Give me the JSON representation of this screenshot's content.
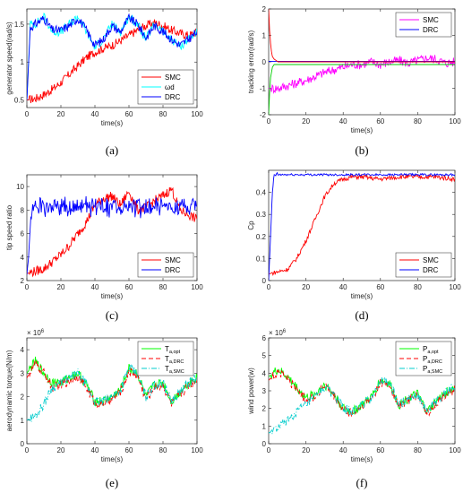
{
  "chart_data": [
    {
      "id": "a",
      "caption": "(a)",
      "type": "line",
      "xlabel": "time(s)",
      "ylabel": "generator speed(rad/s)",
      "xlim": [
        0,
        100
      ],
      "ylim": [
        0.4,
        1.7
      ],
      "xticks": [
        0,
        20,
        40,
        60,
        80,
        100
      ],
      "yticks": [
        0.5,
        1,
        1.5
      ],
      "legend_position": "bottom-right",
      "series": [
        {
          "name": "SMC",
          "color": "#ff0000",
          "style": "solid",
          "x": [
            0,
            5,
            10,
            15,
            20,
            25,
            30,
            35,
            40,
            45,
            50,
            55,
            60,
            65,
            70,
            75,
            80,
            85,
            90,
            95,
            100
          ],
          "y": [
            0.5,
            0.52,
            0.57,
            0.64,
            0.73,
            0.84,
            0.95,
            1.06,
            1.13,
            1.18,
            1.22,
            1.28,
            1.35,
            1.42,
            1.48,
            1.52,
            1.48,
            1.42,
            1.38,
            1.35,
            1.4
          ]
        },
        {
          "name": "ωd",
          "color": "#00ffff",
          "style": "solid",
          "x": [
            0,
            2,
            5,
            10,
            15,
            20,
            25,
            30,
            35,
            40,
            45,
            50,
            55,
            60,
            65,
            70,
            75,
            80,
            85,
            90,
            95,
            100
          ],
          "y": [
            0.5,
            1.5,
            1.5,
            1.6,
            1.4,
            1.4,
            1.5,
            1.6,
            1.4,
            1.2,
            1.3,
            1.5,
            1.4,
            1.6,
            1.5,
            1.3,
            1.5,
            1.4,
            1.3,
            1.2,
            1.3,
            1.4
          ]
        },
        {
          "name": "DRC",
          "color": "#0000ff",
          "style": "solid",
          "x": [
            0,
            2,
            5,
            10,
            15,
            20,
            25,
            30,
            35,
            40,
            45,
            50,
            55,
            60,
            65,
            70,
            75,
            80,
            85,
            90,
            95,
            100
          ],
          "y": [
            0.5,
            1.45,
            1.5,
            1.58,
            1.42,
            1.42,
            1.48,
            1.58,
            1.42,
            1.22,
            1.3,
            1.48,
            1.4,
            1.58,
            1.5,
            1.32,
            1.48,
            1.4,
            1.3,
            1.22,
            1.3,
            1.4
          ]
        }
      ]
    },
    {
      "id": "b",
      "caption": "(b)",
      "type": "line",
      "xlabel": "time(s)",
      "ylabel": "tracking error(rad/s)",
      "xlim": [
        0,
        100
      ],
      "ylim": [
        -2,
        2
      ],
      "xticks": [
        0,
        20,
        40,
        60,
        80,
        100
      ],
      "yticks": [
        -2,
        -1,
        0,
        1,
        2
      ],
      "legend_position": "top-right",
      "series": [
        {
          "name": "SMC",
          "color": "#ff00ff",
          "style": "solid",
          "x": [
            0,
            5,
            10,
            15,
            20,
            25,
            30,
            35,
            40,
            45,
            50,
            55,
            60,
            65,
            70,
            75,
            80,
            85,
            90,
            95,
            100
          ],
          "y": [
            -1.0,
            -1.0,
            -0.9,
            -0.8,
            -0.7,
            -0.55,
            -0.4,
            -0.3,
            -0.2,
            -0.1,
            -0.1,
            0.0,
            -0.1,
            0.0,
            0.05,
            -0.05,
            0.05,
            0.15,
            0.1,
            -0.05,
            0.0
          ]
        },
        {
          "name": "DRC",
          "color": "#0000ff",
          "style": "solid",
          "x": [
            0,
            100
          ],
          "y": [
            0.02,
            0.02
          ]
        },
        {
          "name": "",
          "color": "#ff0000",
          "style": "solid",
          "x": [
            0,
            0.5,
            1,
            1.5,
            2,
            3,
            5,
            100
          ],
          "y": [
            2.0,
            1.2,
            0.7,
            0.4,
            0.2,
            0.1,
            0.0,
            0.0
          ]
        },
        {
          "name": "",
          "color": "#00cc00",
          "style": "solid",
          "x": [
            0,
            0.5,
            1,
            2,
            3,
            5,
            100
          ],
          "y": [
            -2.0,
            -1.2,
            -0.6,
            -0.2,
            -0.1,
            -0.1,
            -0.1
          ]
        }
      ]
    },
    {
      "id": "c",
      "caption": "(c)",
      "type": "line",
      "xlabel": "time(s)",
      "ylabel": "tip speed ratio",
      "xlim": [
        0,
        100
      ],
      "ylim": [
        2,
        11
      ],
      "xticks": [
        0,
        20,
        40,
        60,
        80,
        100
      ],
      "yticks": [
        2,
        4,
        6,
        8,
        10
      ],
      "legend_position": "bottom-right",
      "series": [
        {
          "name": "SMC",
          "color": "#ff0000",
          "style": "solid",
          "x": [
            0,
            5,
            10,
            15,
            20,
            25,
            30,
            35,
            40,
            45,
            50,
            55,
            60,
            65,
            70,
            75,
            80,
            85,
            90,
            95,
            100
          ],
          "y": [
            2.6,
            2.8,
            3.0,
            3.6,
            4.2,
            5.0,
            6.0,
            7.0,
            8.4,
            9.0,
            9.2,
            8.4,
            9.6,
            8.0,
            8.2,
            8.8,
            9.2,
            9.8,
            8.0,
            7.6,
            7.2
          ]
        },
        {
          "name": "DRC",
          "color": "#0000ff",
          "style": "solid",
          "x": [
            0,
            1,
            2,
            3,
            5,
            10,
            20,
            30,
            40,
            50,
            60,
            70,
            80,
            90,
            100
          ],
          "y": [
            2.5,
            4.0,
            6.5,
            8.0,
            8.2,
            8.3,
            8.2,
            8.3,
            8.3,
            8.2,
            8.3,
            8.2,
            8.3,
            8.2,
            8.3
          ]
        }
      ]
    },
    {
      "id": "d",
      "caption": "(d)",
      "type": "line",
      "xlabel": "time(s)",
      "ylabel": "Cp",
      "xlim": [
        0,
        100
      ],
      "ylim": [
        0,
        0.5
      ],
      "xticks": [
        0,
        20,
        40,
        60,
        80,
        100
      ],
      "yticks": [
        0,
        0.1,
        0.2,
        0.3,
        0.4
      ],
      "legend_position": "bottom-right",
      "series": [
        {
          "name": "SMC",
          "color": "#ff0000",
          "style": "solid",
          "x": [
            0,
            5,
            10,
            15,
            20,
            25,
            30,
            35,
            40,
            45,
            50,
            60,
            70,
            80,
            90,
            100
          ],
          "y": [
            0.03,
            0.04,
            0.05,
            0.1,
            0.18,
            0.28,
            0.38,
            0.44,
            0.46,
            0.47,
            0.47,
            0.46,
            0.47,
            0.47,
            0.47,
            0.46
          ]
        },
        {
          "name": "DRC",
          "color": "#0000ff",
          "style": "solid",
          "x": [
            0,
            1,
            2,
            3,
            5,
            100
          ],
          "y": [
            0.0,
            0.2,
            0.4,
            0.48,
            0.48,
            0.48
          ]
        }
      ]
    },
    {
      "id": "e",
      "caption": "(e)",
      "type": "line",
      "xlabel": "time(s)",
      "ylabel": "aerodynamic torque(N/m)",
      "exponent_label": "× 10^6",
      "xlim": [
        0,
        100
      ],
      "ylim": [
        0,
        4.5
      ],
      "xticks": [
        0,
        20,
        40,
        60,
        80,
        100
      ],
      "yticks": [
        0,
        1,
        2,
        3,
        4
      ],
      "legend_position": "top-right",
      "series": [
        {
          "name": "T",
          "subscript": "a,opt",
          "color": "#00ff00",
          "style": "solid",
          "x": [
            0,
            5,
            10,
            15,
            20,
            25,
            30,
            35,
            40,
            45,
            50,
            55,
            60,
            65,
            70,
            75,
            80,
            85,
            90,
            95,
            100
          ],
          "y": [
            3.0,
            3.5,
            3.0,
            2.6,
            2.6,
            2.8,
            3.0,
            2.5,
            1.8,
            1.8,
            2.0,
            2.3,
            3.2,
            3.0,
            2.0,
            2.5,
            2.6,
            1.8,
            2.2,
            2.6,
            2.8
          ]
        },
        {
          "name": "T",
          "subscript": "a,DRC",
          "color": "#ff0000",
          "style": "dashed",
          "x": [
            0,
            5,
            10,
            15,
            20,
            25,
            30,
            35,
            40,
            45,
            50,
            55,
            60,
            65,
            70,
            75,
            80,
            85,
            90,
            95,
            100
          ],
          "y": [
            2.8,
            3.4,
            3.0,
            2.4,
            2.5,
            2.7,
            2.9,
            2.4,
            1.7,
            1.7,
            1.9,
            2.2,
            3.1,
            2.9,
            1.9,
            2.4,
            2.5,
            1.7,
            2.1,
            2.5,
            2.7
          ]
        },
        {
          "name": "T",
          "subscript": "a,SMC",
          "color": "#00cccc",
          "style": "dashdot",
          "x": [
            0,
            5,
            10,
            15,
            20,
            25,
            30,
            35,
            40,
            45,
            50,
            55,
            60,
            65,
            70,
            75,
            80,
            85,
            90,
            95,
            100
          ],
          "y": [
            1.0,
            1.2,
            1.7,
            2.4,
            2.6,
            2.8,
            3.0,
            2.5,
            1.8,
            1.8,
            2.0,
            2.3,
            3.2,
            3.0,
            2.0,
            2.5,
            2.6,
            1.8,
            2.2,
            2.6,
            2.8
          ]
        }
      ]
    },
    {
      "id": "f",
      "caption": "(f)",
      "type": "line",
      "xlabel": "time(s)",
      "ylabel": "wind power(w)",
      "exponent_label": "× 10^6",
      "xlim": [
        0,
        100
      ],
      "ylim": [
        0,
        6
      ],
      "xticks": [
        0,
        20,
        40,
        60,
        80,
        100
      ],
      "yticks": [
        0,
        1,
        2,
        3,
        4,
        5,
        6
      ],
      "legend_position": "top-right",
      "series": [
        {
          "name": "P",
          "subscript": "a,opt",
          "color": "#00ff00",
          "style": "solid",
          "x": [
            0,
            5,
            10,
            15,
            20,
            25,
            30,
            35,
            40,
            45,
            50,
            55,
            60,
            65,
            70,
            75,
            80,
            85,
            90,
            95,
            100
          ],
          "y": [
            3.8,
            4.2,
            3.8,
            3.2,
            2.6,
            2.8,
            3.4,
            2.8,
            2.0,
            1.8,
            2.2,
            2.6,
            3.6,
            3.4,
            2.2,
            2.6,
            2.8,
            1.8,
            2.4,
            2.9,
            3.2
          ]
        },
        {
          "name": "P",
          "subscript": "a,DRC",
          "color": "#ff0000",
          "style": "dashed",
          "x": [
            0,
            5,
            10,
            15,
            20,
            25,
            30,
            35,
            40,
            45,
            50,
            55,
            60,
            65,
            70,
            75,
            80,
            85,
            90,
            95,
            100
          ],
          "y": [
            3.6,
            4.1,
            3.7,
            3.1,
            2.5,
            2.7,
            3.3,
            2.7,
            1.9,
            1.7,
            2.1,
            2.5,
            3.5,
            3.3,
            2.1,
            2.5,
            2.7,
            1.7,
            2.3,
            2.8,
            3.1
          ]
        },
        {
          "name": "P",
          "subscript": "a,SMC",
          "color": "#00cccc",
          "style": "dashdot",
          "x": [
            0,
            5,
            10,
            15,
            20,
            25,
            30,
            35,
            40,
            45,
            50,
            55,
            60,
            65,
            70,
            75,
            80,
            85,
            90,
            95,
            100
          ],
          "y": [
            0.6,
            0.9,
            1.3,
            1.8,
            2.2,
            2.6,
            3.2,
            2.8,
            2.0,
            1.8,
            2.2,
            2.6,
            3.6,
            3.4,
            2.2,
            2.6,
            2.8,
            1.8,
            2.4,
            2.9,
            3.2
          ]
        }
      ]
    }
  ]
}
